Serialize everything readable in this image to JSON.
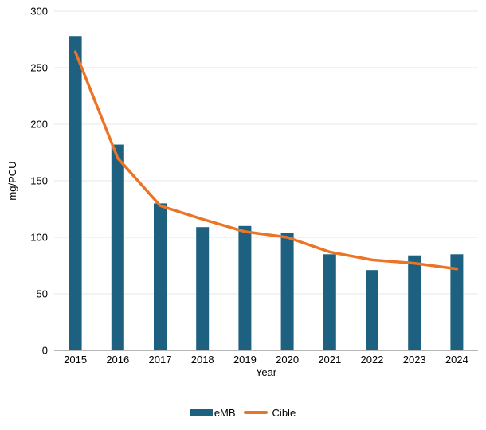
{
  "chart_data": {
    "type": "bar",
    "title": "",
    "categories": [
      "2015",
      "2016",
      "2017",
      "2018",
      "2019",
      "2020",
      "2021",
      "2022",
      "2023",
      "2024"
    ],
    "series": [
      {
        "name": "eMB",
        "type": "bar",
        "color": "#1d6080",
        "values": [
          278,
          182,
          130,
          109,
          110,
          104,
          85,
          71,
          84,
          85
        ]
      },
      {
        "name": "Cible",
        "type": "line",
        "color": "#ec7426",
        "values": [
          264,
          170,
          128,
          116,
          105,
          100,
          87,
          80,
          77,
          72
        ]
      }
    ],
    "xlabel": "Year",
    "ylabel": "mg/PCU",
    "ylim": [
      0,
      300
    ],
    "yticks": [
      0,
      50,
      100,
      150,
      200,
      250,
      300
    ],
    "grid": true,
    "legend_position": "bottom"
  },
  "colors": {
    "gridline": "#e7e7e7",
    "axis_line": "#9d9d9d",
    "tick_text": "#000000"
  }
}
